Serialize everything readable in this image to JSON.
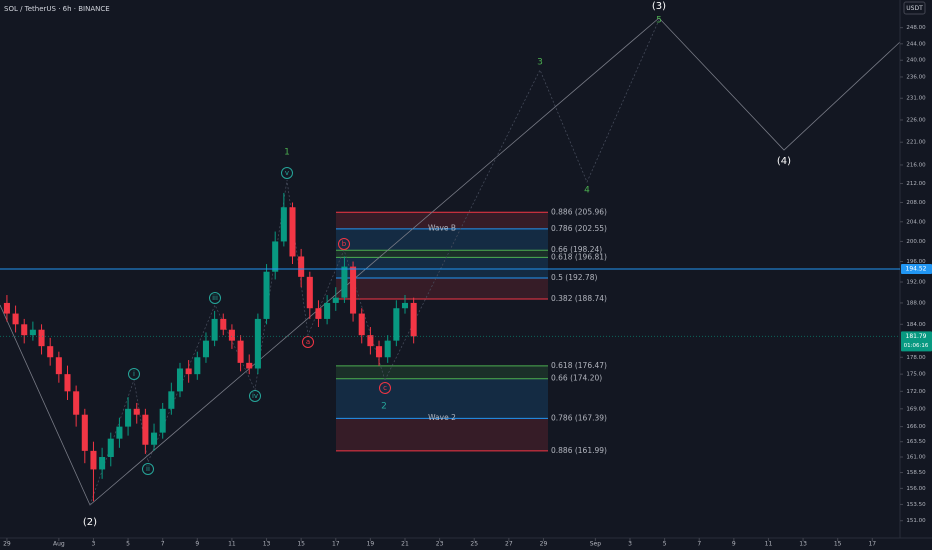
{
  "chart_data": {
    "type": "candlestick",
    "title": "SOL / TetherUS · 6h · BINANCE",
    "currency": "USDT",
    "log_scale": true,
    "up_color": "#089981",
    "down_color": "#f23645",
    "x": [
      0,
      0.5,
      1,
      1.5,
      2,
      2.5,
      3,
      3.5,
      4,
      4.5,
      5,
      5.5,
      6,
      6.5,
      7,
      7.5,
      8,
      8.5,
      9,
      9.5,
      10,
      10.5,
      11,
      11.5,
      12,
      12.5,
      13,
      13.5,
      14,
      14.5,
      15,
      15.5,
      16,
      16.5,
      17,
      17.5,
      18,
      18.5,
      19,
      19.5,
      20,
      20.5,
      21,
      21.5,
      22,
      22.5,
      23,
      23.5
    ],
    "open": [
      188,
      186,
      184,
      182,
      183,
      180,
      178,
      175,
      172,
      168,
      162,
      159,
      161,
      164,
      166,
      169,
      168,
      163,
      165,
      169,
      172,
      176,
      175,
      178,
      181,
      185,
      183,
      181,
      177,
      176,
      185,
      194,
      200,
      207,
      197,
      193,
      187,
      185,
      188,
      189,
      195,
      186,
      182,
      180,
      178,
      181,
      187,
      188
    ],
    "high": [
      189.5,
      187.5,
      185,
      184.5,
      184,
      181.5,
      179,
      176.5,
      173,
      169,
      163.5,
      162.5,
      165,
      167.5,
      171,
      170,
      169,
      166.5,
      170,
      173.5,
      177,
      177.5,
      179,
      182.5,
      186.5,
      186,
      184,
      182,
      178.5,
      186,
      195.5,
      202,
      210,
      208,
      198.5,
      194,
      188.5,
      189.5,
      191,
      197,
      196,
      187,
      183.5,
      181,
      182,
      188.5,
      189.5,
      189
    ],
    "low": [
      184.5,
      182.5,
      180.5,
      181,
      178.5,
      176.5,
      173.5,
      170.5,
      166,
      160,
      154,
      157.5,
      159.5,
      162.5,
      164.5,
      166.5,
      161.5,
      162,
      164,
      168,
      171,
      173.5,
      174,
      177,
      180,
      182,
      179.5,
      175.5,
      175,
      175,
      184,
      192.5,
      199,
      195.5,
      191,
      185,
      183.5,
      184,
      186.5,
      188,
      184.5,
      180.5,
      178.5,
      176.5,
      177,
      180,
      186,
      180.5
    ],
    "close": [
      186,
      184,
      182,
      183,
      180,
      178,
      175,
      172,
      168,
      162,
      159,
      161,
      164,
      166,
      169,
      168,
      163,
      165,
      169,
      172,
      176,
      175,
      178,
      181,
      185,
      183,
      181,
      177,
      176,
      185,
      194,
      200,
      207,
      197,
      193,
      187,
      185,
      188,
      189,
      195,
      186,
      182,
      180,
      178,
      181,
      187,
      188,
      181.79
    ],
    "xlim": [
      -0.4,
      51.6
    ],
    "xticks": [
      {
        "value": 0,
        "label": "29"
      },
      {
        "value": 3,
        "label": "Aug"
      },
      {
        "value": 5,
        "label": "3"
      },
      {
        "value": 7,
        "label": "5"
      },
      {
        "value": 9,
        "label": "7"
      },
      {
        "value": 11,
        "label": "9"
      },
      {
        "value": 13,
        "label": "11"
      },
      {
        "value": 15,
        "label": "13"
      },
      {
        "value": 17,
        "label": "15"
      },
      {
        "value": 19,
        "label": "17"
      },
      {
        "value": 21,
        "label": "19"
      },
      {
        "value": 23,
        "label": "21"
      },
      {
        "value": 25,
        "label": "23"
      },
      {
        "value": 27,
        "label": "25"
      },
      {
        "value": 29,
        "label": "27"
      },
      {
        "value": 31,
        "label": "29"
      },
      {
        "value": 34,
        "label": "Sep"
      },
      {
        "value": 36,
        "label": "3"
      },
      {
        "value": 38,
        "label": "5"
      },
      {
        "value": 40,
        "label": "7"
      },
      {
        "value": 42,
        "label": "9"
      },
      {
        "value": 44,
        "label": "11"
      },
      {
        "value": 46,
        "label": "13"
      },
      {
        "value": 48,
        "label": "15"
      },
      {
        "value": 50,
        "label": "17"
      }
    ],
    "ylim": [
      148.4,
      255
    ],
    "yticks": [
      {
        "value": 248,
        "label": "248.00"
      },
      {
        "value": 244,
        "label": "244.00"
      },
      {
        "value": 240,
        "label": "240.00"
      },
      {
        "value": 236,
        "label": "236.00"
      },
      {
        "value": 231,
        "label": "231.00"
      },
      {
        "value": 226,
        "label": "226.00"
      },
      {
        "value": 221,
        "label": "221.00"
      },
      {
        "value": 216,
        "label": "216.00"
      },
      {
        "value": 212,
        "label": "212.00"
      },
      {
        "value": 208,
        "label": "208.00"
      },
      {
        "value": 204,
        "label": "204.00"
      },
      {
        "value": 200,
        "label": "200.00"
      },
      {
        "value": 196,
        "label": "196.00"
      },
      {
        "value": 192,
        "label": "192.00"
      },
      {
        "value": 188,
        "label": "188.00"
      },
      {
        "value": 184,
        "label": "184.00"
      },
      {
        "value": 178,
        "label": "178.00"
      },
      {
        "value": 175,
        "label": "175.00"
      },
      {
        "value": 172,
        "label": "172.00"
      },
      {
        "value": 169,
        "label": "169.00"
      },
      {
        "value": 166,
        "label": "166.00"
      },
      {
        "value": 163.5,
        "label": "163.50"
      },
      {
        "value": 161,
        "label": "161.00"
      },
      {
        "value": 158.5,
        "label": "158.50"
      },
      {
        "value": 156,
        "label": "156.00"
      },
      {
        "value": 153.5,
        "label": "153.50"
      },
      {
        "value": 151,
        "label": "151.00"
      }
    ],
    "price_lines": [
      {
        "price": 194.52,
        "color": "#2196f3"
      },
      {
        "price": 181.79,
        "color": "#089981",
        "countdown": "01:06:16"
      }
    ],
    "fib_boxes": [
      {
        "label": "Wave B",
        "color": "#2196f3",
        "levels": [
          {
            "label": "0.886 (205.96)",
            "price": 205.96,
            "color": "#f23645"
          },
          {
            "label": "0.786 (202.55)",
            "price": 202.55,
            "color": "#2196f3"
          },
          {
            "label": "0.66 (198.24)",
            "price": 198.24,
            "color": "#4caf50"
          },
          {
            "label": "0.618 (196.81)",
            "price": 196.81,
            "color": "#4caf50"
          },
          {
            "label": "0.5 (192.78)",
            "price": 192.78,
            "color": "#2196f3"
          },
          {
            "label": "0.382 (188.74)",
            "price": 188.74,
            "color": "#f23645"
          }
        ]
      },
      {
        "label": "Wave 2",
        "color": "#2196f3",
        "levels": [
          {
            "label": "0.618 (176.47)",
            "price": 176.47,
            "color": "#4caf50"
          },
          {
            "label": "0.66 (174.20)",
            "price": 174.2,
            "color": "#4caf50"
          },
          {
            "label": "0.786 (167.39)",
            "price": 167.39,
            "color": "#2196f3"
          },
          {
            "label": "0.886 (161.99)",
            "price": 161.99,
            "color": "#f23645"
          }
        ]
      }
    ],
    "wave_labels": [
      "(2)",
      "i",
      "ii",
      "iii",
      "iv",
      "v",
      "1",
      "a",
      "b",
      "c",
      "2",
      "3",
      "4",
      "5",
      "(3)",
      "(4)"
    ]
  }
}
